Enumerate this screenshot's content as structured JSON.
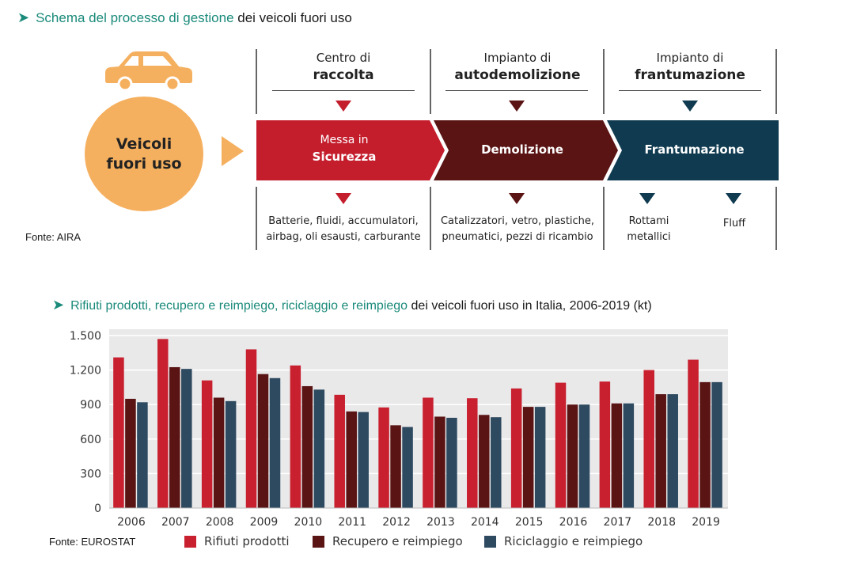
{
  "diagram": {
    "title_highlight": "Schema del processo di gestione",
    "title_rest": "dei veicoli fuori uso",
    "circle_label_1": "Veicoli",
    "circle_label_2": "fuori uso",
    "source": "Fonte: AIRA",
    "columns": [
      {
        "normal": "Centro di",
        "bold": "raccolta"
      },
      {
        "normal": "Impianto di",
        "bold": "autodemolizione"
      },
      {
        "normal": "Impianto di",
        "bold": "frantumazione"
      }
    ],
    "flow": [
      {
        "line1": "Messa in",
        "line2": "Sicurezza",
        "color": "#c41e2d"
      },
      {
        "line1": "",
        "line2": "Demolizione",
        "color": "#5a1414"
      },
      {
        "line1": "",
        "line2": "Frantumazione",
        "color": "#0f3a50"
      }
    ],
    "outputs": [
      {
        "line1": "Batterie, fluidi, accumulatori,",
        "line2": "airbag, oli esausti, carburante"
      },
      {
        "line1": "Catalizzatori, vetro, plastiche,",
        "line2": "pneumatici, pezzi di ricambio"
      },
      {
        "line1": "Rottami",
        "line2": "metallici"
      },
      {
        "line1": "Fluff",
        "line2": ""
      }
    ],
    "colors": {
      "accent": "#1a8a7a",
      "orange": "#f5b05f",
      "red": "#c41e2d",
      "dark_red": "#5a1414",
      "navy": "#0f3a50"
    }
  },
  "chart_data": {
    "type": "bar",
    "title_highlight": "Rifiuti prodotti, recupero e reimpiego, riciclaggio e reimpiego",
    "title_rest": "dei veicoli fuori uso in Italia, 2006-2019 (kt)",
    "categories": [
      "2006",
      "2007",
      "2008",
      "2009",
      "2010",
      "2011",
      "2012",
      "2013",
      "2014",
      "2015",
      "2016",
      "2017",
      "2018",
      "2019"
    ],
    "series": [
      {
        "name": "Rifiuti prodotti",
        "color": "#c8202f",
        "values": [
          1310,
          1470,
          1110,
          1380,
          1240,
          985,
          875,
          960,
          955,
          1040,
          1090,
          1100,
          1200,
          1290
        ]
      },
      {
        "name": "Recupero e reimpiego",
        "color": "#5a1414",
        "values": [
          950,
          1225,
          960,
          1165,
          1060,
          840,
          720,
          795,
          810,
          880,
          900,
          910,
          990,
          1095
        ]
      },
      {
        "name": "Riciclaggio e reimpiego",
        "color": "#2e4a60",
        "values": [
          920,
          1210,
          930,
          1130,
          1030,
          835,
          705,
          785,
          790,
          880,
          900,
          910,
          990,
          1095
        ]
      }
    ],
    "ylim": [
      0,
      1500
    ],
    "yticks": [
      0,
      300,
      600,
      900,
      1200,
      1500
    ],
    "ytick_labels": [
      "0",
      "300",
      "600",
      "900",
      "1.200",
      "1.500"
    ],
    "grid": true,
    "legend_position": "bottom",
    "source": "Fonte: EUROSTAT"
  }
}
